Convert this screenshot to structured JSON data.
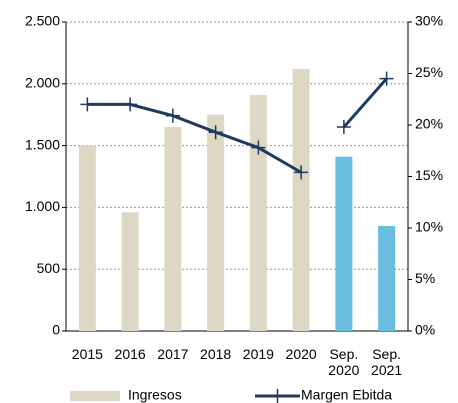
{
  "chart_data": {
    "type": "bar-line",
    "categories": [
      "2015",
      "2016",
      "2017",
      "2018",
      "2019",
      "2020",
      "Sep. 2020",
      "Sep. 2021"
    ],
    "series": [
      {
        "name": "Ingresos",
        "type": "bar",
        "color": "#ddd8c4",
        "colors": [
          "#ddd8c4",
          "#ddd8c4",
          "#ddd8c4",
          "#ddd8c4",
          "#ddd8c4",
          "#ddd8c4",
          "#6bbde0",
          "#6bbde0"
        ],
        "values": [
          1500,
          960,
          1650,
          1750,
          1910,
          2120,
          1410,
          850
        ]
      },
      {
        "name": "Margen Ebitda",
        "type": "line",
        "axis": "y2",
        "color": "#1f3a5f",
        "values": [
          22.0,
          22.0,
          20.9,
          19.3,
          17.8,
          15.4,
          19.8,
          24.5
        ]
      }
    ],
    "ylim": [
      0,
      2500
    ],
    "yticks": [
      0,
      500,
      {
        "value": 1000,
        "label": "1.000"
      },
      {
        "value": 1500,
        "label": "1.500"
      },
      {
        "value": 2000,
        "label": "2.000"
      },
      {
        "value": 2500,
        "label": "2.500"
      }
    ],
    "y2lim": [
      0,
      30
    ],
    "y2ticks": [
      {
        "value": 0,
        "label": "0%"
      },
      {
        "value": 5,
        "label": "5%"
      },
      {
        "value": 10,
        "label": "10%"
      },
      {
        "value": 15,
        "label": "15%"
      },
      {
        "value": 20,
        "label": "20%"
      },
      {
        "value": 25,
        "label": "25%"
      },
      {
        "value": 30,
        "label": "30%"
      }
    ],
    "grid": true,
    "legend": "bottom"
  }
}
